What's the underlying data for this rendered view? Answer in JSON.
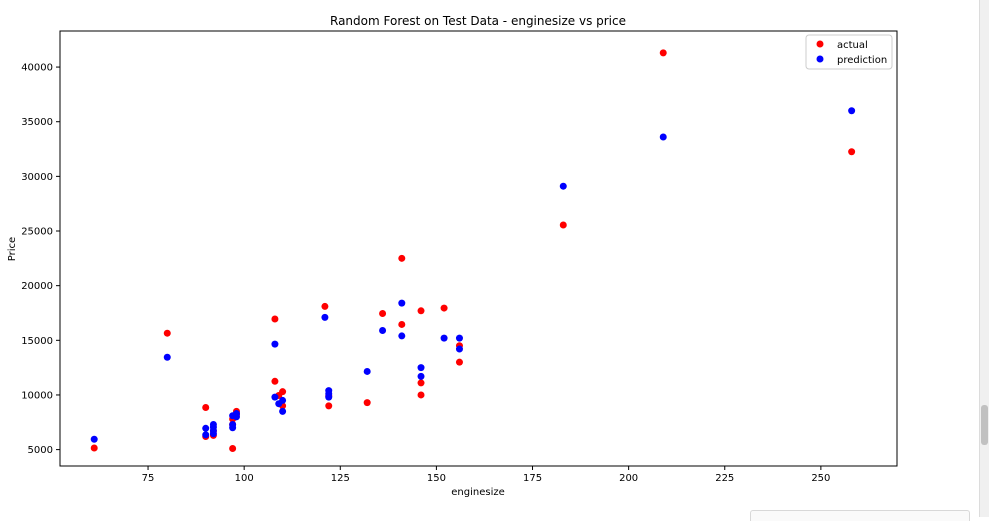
{
  "chart_data": {
    "type": "scatter",
    "title": "Random Forest on Test Data - enginesize vs price",
    "xlabel": "enginesize",
    "ylabel": "Price",
    "xlim": [
      52.1,
      269.8
    ],
    "ylim": [
      3500,
      43300
    ],
    "xticks": [
      75,
      100,
      125,
      150,
      175,
      200,
      225,
      250
    ],
    "yticks": [
      5000,
      10000,
      15000,
      20000,
      25000,
      30000,
      35000,
      40000
    ],
    "grid": false,
    "legend_position": "top-right",
    "series": [
      {
        "name": "actual",
        "color": "#ff0000",
        "points": [
          [
            61,
            5150
          ],
          [
            80,
            15650
          ],
          [
            90,
            8850
          ],
          [
            90,
            6200
          ],
          [
            92,
            6700
          ],
          [
            92,
            6300
          ],
          [
            97,
            5100
          ],
          [
            97,
            7800
          ],
          [
            97,
            7300
          ],
          [
            98,
            8500
          ],
          [
            98,
            8200
          ],
          [
            108,
            16950
          ],
          [
            108,
            11250
          ],
          [
            109,
            9950
          ],
          [
            110,
            10300
          ],
          [
            110,
            9000
          ],
          [
            121,
            18100
          ],
          [
            122,
            9000
          ],
          [
            122,
            9900
          ],
          [
            132,
            9300
          ],
          [
            136,
            17450
          ],
          [
            141,
            22500
          ],
          [
            141,
            16450
          ],
          [
            146,
            17700
          ],
          [
            146,
            11100
          ],
          [
            146,
            10000
          ],
          [
            152,
            17950
          ],
          [
            156,
            14500
          ],
          [
            156,
            13000
          ],
          [
            183,
            25550
          ],
          [
            209,
            41300
          ],
          [
            258,
            32250
          ]
        ]
      },
      {
        "name": "prediction",
        "color": "#0000ff",
        "points": [
          [
            61,
            5950
          ],
          [
            80,
            13450
          ],
          [
            90,
            6950
          ],
          [
            90,
            6350
          ],
          [
            92,
            7300
          ],
          [
            92,
            7050
          ],
          [
            92,
            6750
          ],
          [
            92,
            6450
          ],
          [
            97,
            7300
          ],
          [
            97,
            8100
          ],
          [
            97,
            7000
          ],
          [
            98,
            8300
          ],
          [
            98,
            8000
          ],
          [
            108,
            14650
          ],
          [
            108,
            9800
          ],
          [
            109,
            9200
          ],
          [
            110,
            9500
          ],
          [
            110,
            8500
          ],
          [
            121,
            17100
          ],
          [
            122,
            10400
          ],
          [
            122,
            10100
          ],
          [
            122,
            9800
          ],
          [
            132,
            12150
          ],
          [
            136,
            15900
          ],
          [
            141,
            18400
          ],
          [
            141,
            15400
          ],
          [
            146,
            12500
          ],
          [
            146,
            11700
          ],
          [
            152,
            15200
          ],
          [
            156,
            15200
          ],
          [
            156,
            14200
          ],
          [
            183,
            29100
          ],
          [
            209,
            33600
          ],
          [
            258,
            36000
          ]
        ]
      }
    ]
  }
}
